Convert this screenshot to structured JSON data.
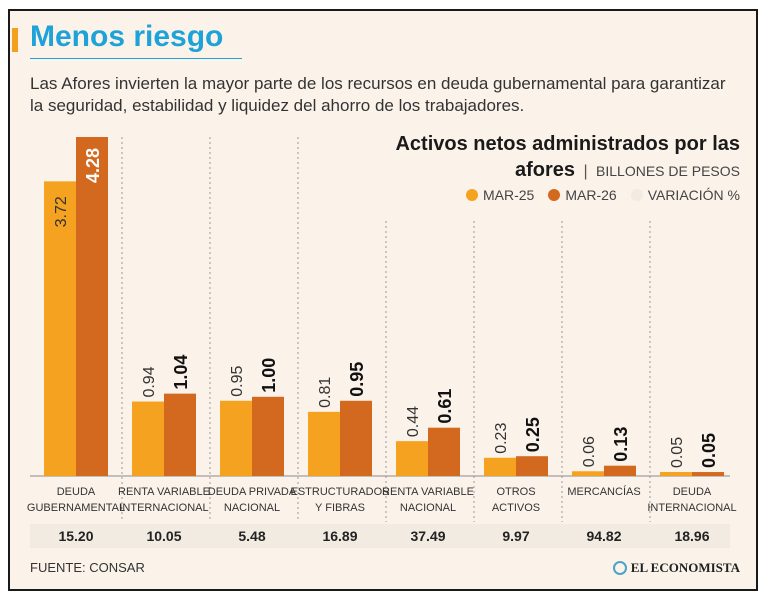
{
  "header": {
    "title": "Menos riesgo",
    "subtitle": "Las Afores invierten la mayor parte de los recursos en deuda gubernamental para garantizar la seguridad, estabilidad y liquidez del ahorro de los trabajadores."
  },
  "chart_title": {
    "line1": "Activos netos administrados por las",
    "line2_bold": "afores",
    "separator": "|",
    "unit": "BILLONES DE PESOS"
  },
  "legend": [
    {
      "label": "MAR-25",
      "color": "#f4a21f"
    },
    {
      "label": "MAR-26",
      "color": "#d2691e"
    },
    {
      "label": "VARIACIÓN %",
      "color": "#f2ebe2"
    }
  ],
  "footer": {
    "source": "FUENTE: CONSAR",
    "brand": "EL ECONOMISTA"
  },
  "chart_data": {
    "type": "bar",
    "categories": [
      [
        "DEUDA",
        "GUBERNAMENTAL"
      ],
      [
        "RENTA VARIABLE",
        "INTERNACIONAL"
      ],
      [
        "DEUDA PRIVADA",
        "NACIONAL"
      ],
      [
        "ESTRUCTURADOS",
        "Y FIBRAS"
      ],
      [
        "RENTA VARIABLE",
        "NACIONAL"
      ],
      [
        "OTROS",
        "ACTIVOS"
      ],
      [
        "MERCANCÍAS"
      ],
      [
        "DEUDA",
        "INTERNACIONAL"
      ]
    ],
    "series": [
      {
        "name": "MAR-25",
        "values": [
          3.72,
          0.94,
          0.95,
          0.81,
          0.44,
          0.23,
          0.06,
          0.05
        ],
        "labels": [
          "3.72",
          "0.94",
          "0.95",
          "0.81",
          "0.44",
          "0.23",
          "0.06",
          "0.05"
        ]
      },
      {
        "name": "MAR-26",
        "values": [
          4.28,
          1.04,
          1.0,
          0.95,
          0.61,
          0.25,
          0.13,
          0.05
        ],
        "labels": [
          "4.28",
          "1.04",
          "1.00",
          "0.95",
          "0.61",
          "0.25",
          "0.13",
          "0.05"
        ]
      }
    ],
    "variation": [
      "15.20",
      "10.05",
      "5.48",
      "16.89",
      "37.49",
      "9.97",
      "94.82",
      "18.96"
    ],
    "ylim": [
      0,
      4.28
    ],
    "colors": {
      "mar25": "#f4a21f",
      "mar26": "#d2691e",
      "variation_bg": "#f2ebe2"
    }
  }
}
